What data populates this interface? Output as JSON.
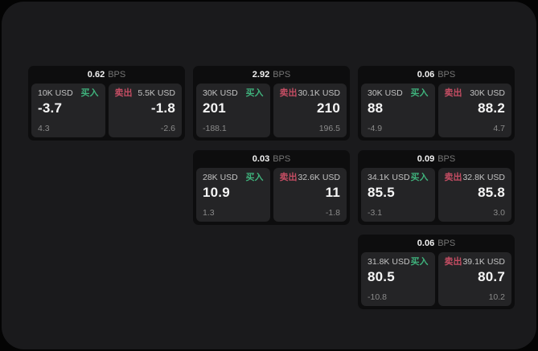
{
  "theme": {
    "page_bg": "#040404",
    "panel_bg": "#1a1a1c",
    "card_bg": "#0d0d0e",
    "tile_bg": "#242426",
    "text_primary": "#f5f5f5",
    "text_secondary": "#8a8a8a",
    "amount_label": "#c3c3c3",
    "buy_color": "#3fb27c",
    "sell_color": "#c44d63"
  },
  "cards": [
    {
      "bps_value": "0.62",
      "bps_unit": "BPS",
      "buy": {
        "amount": "10K USD",
        "side_label": "买入",
        "price": "-3.7",
        "delta": "4.3"
      },
      "sell": {
        "side_label": "卖出",
        "amount": "5.5K USD",
        "price": "-1.8",
        "delta": "-2.6"
      }
    },
    {
      "bps_value": "2.92",
      "bps_unit": "BPS",
      "buy": {
        "amount": "30K USD",
        "side_label": "买入",
        "price": "201",
        "delta": "-188.1"
      },
      "sell": {
        "side_label": "卖出",
        "amount": "30.1K USD",
        "price": "210",
        "delta": "196.5"
      }
    },
    {
      "bps_value": "0.06",
      "bps_unit": "BPS",
      "buy": {
        "amount": "30K USD",
        "side_label": "买入",
        "price": "88",
        "delta": "-4.9"
      },
      "sell": {
        "side_label": "卖出",
        "amount": "30K USD",
        "price": "88.2",
        "delta": "4.7"
      }
    },
    {
      "bps_value": "0.03",
      "bps_unit": "BPS",
      "buy": {
        "amount": "28K USD",
        "side_label": "买入",
        "price": "10.9",
        "delta": "1.3"
      },
      "sell": {
        "side_label": "卖出",
        "amount": "32.6K USD",
        "price": "11",
        "delta": "-1.8"
      }
    },
    {
      "bps_value": "0.09",
      "bps_unit": "BPS",
      "buy": {
        "amount": "34.1K USD",
        "side_label": "买入",
        "price": "85.5",
        "delta": "-3.1"
      },
      "sell": {
        "side_label": "卖出",
        "amount": "32.8K USD",
        "price": "85.8",
        "delta": "3.0"
      }
    },
    {
      "bps_value": "0.06",
      "bps_unit": "BPS",
      "buy": {
        "amount": "31.8K USD",
        "side_label": "买入",
        "price": "80.5",
        "delta": "-10.8"
      },
      "sell": {
        "side_label": "卖出",
        "amount": "39.1K USD",
        "price": "80.7",
        "delta": "10.2"
      }
    }
  ]
}
